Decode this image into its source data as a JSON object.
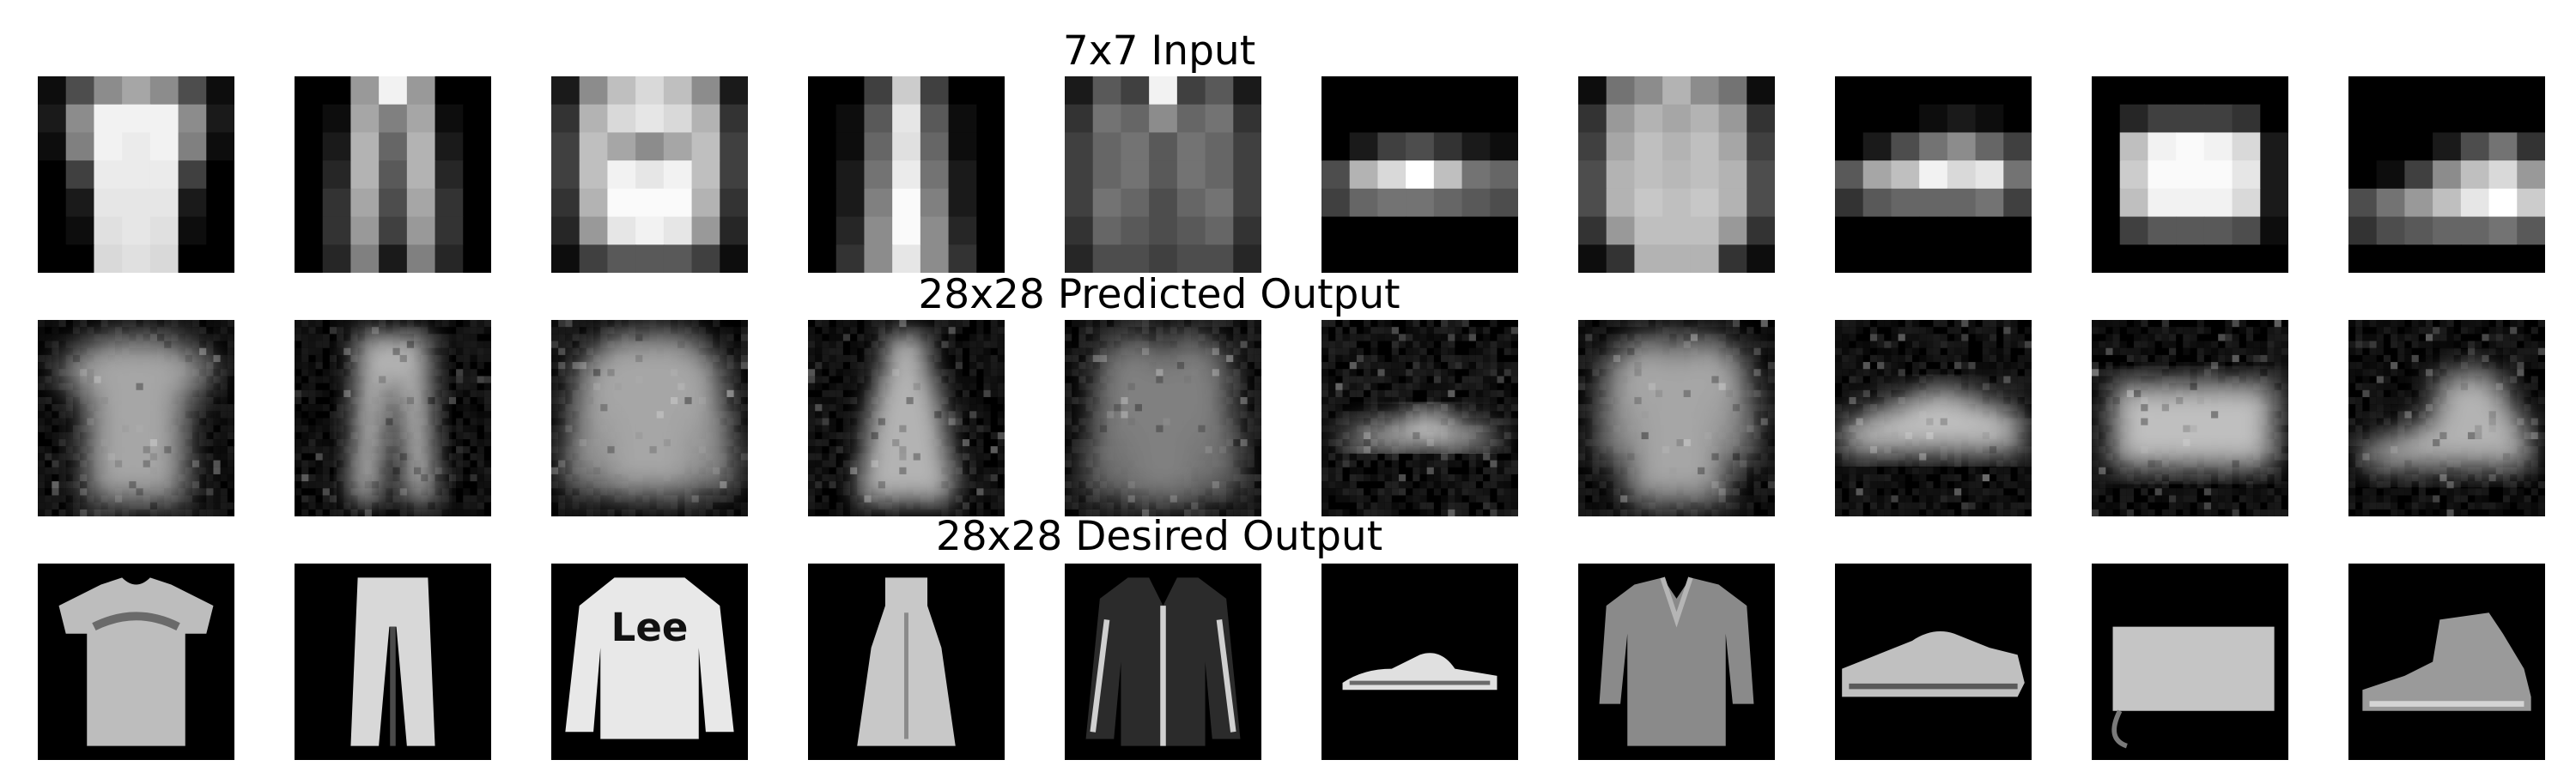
{
  "figure": {
    "rows": [
      {
        "key": "input",
        "title": "7x7 Input",
        "grid": 7,
        "items": [
          {
            "name": "tshirt-7x7",
            "pixels": [
              [
                0.05,
                0.3,
                0.55,
                0.65,
                0.55,
                0.3,
                0.05
              ],
              [
                0.1,
                0.55,
                0.95,
                0.95,
                0.95,
                0.55,
                0.1
              ],
              [
                0.05,
                0.5,
                0.95,
                0.92,
                0.95,
                0.5,
                0.05
              ],
              [
                0.0,
                0.25,
                0.92,
                0.92,
                0.92,
                0.25,
                0.0
              ],
              [
                0.0,
                0.1,
                0.9,
                0.9,
                0.9,
                0.1,
                0.0
              ],
              [
                0.0,
                0.05,
                0.88,
                0.9,
                0.88,
                0.05,
                0.0
              ],
              [
                0.0,
                0.0,
                0.85,
                0.88,
                0.85,
                0.0,
                0.0
              ]
            ]
          },
          {
            "name": "trouser-7x7",
            "pixels": [
              [
                0.0,
                0.0,
                0.6,
                0.95,
                0.6,
                0.0,
                0.0
              ],
              [
                0.0,
                0.05,
                0.65,
                0.5,
                0.65,
                0.05,
                0.0
              ],
              [
                0.0,
                0.1,
                0.7,
                0.4,
                0.7,
                0.1,
                0.0
              ],
              [
                0.0,
                0.15,
                0.7,
                0.35,
                0.7,
                0.15,
                0.0
              ],
              [
                0.0,
                0.2,
                0.65,
                0.3,
                0.65,
                0.2,
                0.0
              ],
              [
                0.0,
                0.2,
                0.6,
                0.25,
                0.6,
                0.2,
                0.0
              ],
              [
                0.0,
                0.15,
                0.5,
                0.1,
                0.5,
                0.15,
                0.0
              ]
            ]
          },
          {
            "name": "pullover-7x7",
            "pixels": [
              [
                0.1,
                0.55,
                0.75,
                0.85,
                0.75,
                0.55,
                0.1
              ],
              [
                0.2,
                0.7,
                0.85,
                0.9,
                0.85,
                0.7,
                0.2
              ],
              [
                0.25,
                0.75,
                0.65,
                0.55,
                0.65,
                0.75,
                0.25
              ],
              [
                0.25,
                0.75,
                0.95,
                0.9,
                0.95,
                0.75,
                0.25
              ],
              [
                0.2,
                0.7,
                0.98,
                0.98,
                0.98,
                0.7,
                0.2
              ],
              [
                0.15,
                0.6,
                0.9,
                0.95,
                0.9,
                0.6,
                0.15
              ],
              [
                0.05,
                0.25,
                0.35,
                0.35,
                0.35,
                0.25,
                0.05
              ]
            ]
          },
          {
            "name": "dress-7x7",
            "pixels": [
              [
                0.0,
                0.0,
                0.25,
                0.8,
                0.25,
                0.0,
                0.0
              ],
              [
                0.0,
                0.05,
                0.35,
                0.9,
                0.35,
                0.05,
                0.0
              ],
              [
                0.0,
                0.05,
                0.4,
                0.88,
                0.4,
                0.05,
                0.0
              ],
              [
                0.0,
                0.1,
                0.45,
                0.92,
                0.45,
                0.1,
                0.0
              ],
              [
                0.0,
                0.1,
                0.5,
                0.98,
                0.5,
                0.1,
                0.0
              ],
              [
                0.0,
                0.15,
                0.55,
                0.98,
                0.55,
                0.15,
                0.0
              ],
              [
                0.0,
                0.2,
                0.55,
                0.9,
                0.55,
                0.2,
                0.0
              ]
            ]
          },
          {
            "name": "coat-7x7",
            "pixels": [
              [
                0.1,
                0.35,
                0.25,
                0.95,
                0.25,
                0.35,
                0.1
              ],
              [
                0.2,
                0.45,
                0.4,
                0.55,
                0.4,
                0.45,
                0.2
              ],
              [
                0.25,
                0.4,
                0.45,
                0.35,
                0.45,
                0.4,
                0.25
              ],
              [
                0.25,
                0.4,
                0.45,
                0.35,
                0.45,
                0.4,
                0.25
              ],
              [
                0.25,
                0.45,
                0.4,
                0.3,
                0.4,
                0.45,
                0.25
              ],
              [
                0.2,
                0.4,
                0.35,
                0.3,
                0.35,
                0.4,
                0.2
              ],
              [
                0.15,
                0.3,
                0.3,
                0.25,
                0.3,
                0.3,
                0.15
              ]
            ]
          },
          {
            "name": "sandal-7x7",
            "pixels": [
              [
                0.0,
                0.0,
                0.0,
                0.0,
                0.0,
                0.0,
                0.0
              ],
              [
                0.0,
                0.0,
                0.0,
                0.0,
                0.0,
                0.0,
                0.0
              ],
              [
                0.0,
                0.1,
                0.25,
                0.3,
                0.2,
                0.1,
                0.05
              ],
              [
                0.3,
                0.7,
                0.85,
                1.0,
                0.75,
                0.45,
                0.4
              ],
              [
                0.25,
                0.4,
                0.45,
                0.45,
                0.4,
                0.35,
                0.3
              ],
              [
                0.0,
                0.0,
                0.0,
                0.0,
                0.0,
                0.0,
                0.0
              ],
              [
                0.0,
                0.0,
                0.0,
                0.0,
                0.0,
                0.0,
                0.0
              ]
            ]
          },
          {
            "name": "shirt-7x7",
            "pixels": [
              [
                0.05,
                0.45,
                0.55,
                0.7,
                0.55,
                0.45,
                0.05
              ],
              [
                0.2,
                0.6,
                0.7,
                0.65,
                0.7,
                0.6,
                0.2
              ],
              [
                0.25,
                0.65,
                0.75,
                0.7,
                0.75,
                0.65,
                0.25
              ],
              [
                0.3,
                0.7,
                0.75,
                0.72,
                0.75,
                0.7,
                0.3
              ],
              [
                0.3,
                0.7,
                0.78,
                0.75,
                0.78,
                0.7,
                0.3
              ],
              [
                0.2,
                0.6,
                0.75,
                0.75,
                0.75,
                0.6,
                0.2
              ],
              [
                0.05,
                0.2,
                0.7,
                0.7,
                0.7,
                0.2,
                0.05
              ]
            ]
          },
          {
            "name": "sneaker-7x7",
            "pixels": [
              [
                0.0,
                0.0,
                0.0,
                0.0,
                0.0,
                0.0,
                0.0
              ],
              [
                0.0,
                0.0,
                0.0,
                0.05,
                0.1,
                0.05,
                0.0
              ],
              [
                0.0,
                0.1,
                0.3,
                0.45,
                0.55,
                0.4,
                0.25
              ],
              [
                0.35,
                0.65,
                0.75,
                0.95,
                0.85,
                0.9,
                0.45
              ],
              [
                0.2,
                0.35,
                0.4,
                0.4,
                0.4,
                0.45,
                0.25
              ],
              [
                0.0,
                0.0,
                0.0,
                0.0,
                0.0,
                0.0,
                0.0
              ],
              [
                0.0,
                0.0,
                0.0,
                0.0,
                0.0,
                0.0,
                0.0
              ]
            ]
          },
          {
            "name": "bag-7x7",
            "pixels": [
              [
                0.0,
                0.0,
                0.0,
                0.0,
                0.0,
                0.0,
                0.0
              ],
              [
                0.0,
                0.15,
                0.25,
                0.25,
                0.25,
                0.2,
                0.0
              ],
              [
                0.0,
                0.75,
                0.95,
                0.98,
                0.95,
                0.85,
                0.1
              ],
              [
                0.0,
                0.8,
                0.98,
                0.98,
                0.98,
                0.9,
                0.1
              ],
              [
                0.0,
                0.75,
                0.95,
                0.95,
                0.95,
                0.85,
                0.1
              ],
              [
                0.0,
                0.25,
                0.35,
                0.35,
                0.35,
                0.3,
                0.05
              ],
              [
                0.0,
                0.0,
                0.0,
                0.0,
                0.0,
                0.0,
                0.0
              ]
            ]
          },
          {
            "name": "ankle-boot-7x7",
            "pixels": [
              [
                0.0,
                0.0,
                0.0,
                0.0,
                0.0,
                0.0,
                0.0
              ],
              [
                0.0,
                0.0,
                0.0,
                0.0,
                0.0,
                0.0,
                0.0
              ],
              [
                0.0,
                0.0,
                0.0,
                0.1,
                0.3,
                0.45,
                0.2
              ],
              [
                0.0,
                0.05,
                0.25,
                0.55,
                0.75,
                0.85,
                0.6
              ],
              [
                0.3,
                0.45,
                0.6,
                0.75,
                0.9,
                1.0,
                0.8
              ],
              [
                0.2,
                0.3,
                0.35,
                0.4,
                0.4,
                0.45,
                0.35
              ],
              [
                0.0,
                0.0,
                0.0,
                0.0,
                0.0,
                0.0,
                0.0
              ]
            ]
          }
        ]
      },
      {
        "key": "predicted",
        "title": "28x28 Predicted Output",
        "grid": 28,
        "items": [
          {
            "name": "tshirt-predicted",
            "shape": "tshirt",
            "brightness": 0.65,
            "blur": 2.2,
            "noise": 0.25
          },
          {
            "name": "trouser-predicted",
            "shape": "trouser",
            "brightness": 0.7,
            "blur": 1.8,
            "noise": 0.25
          },
          {
            "name": "pullover-predicted",
            "shape": "pullover",
            "brightness": 0.65,
            "blur": 2.2,
            "noise": 0.25
          },
          {
            "name": "dress-predicted",
            "shape": "dress",
            "brightness": 0.7,
            "blur": 1.8,
            "noise": 0.25
          },
          {
            "name": "coat-predicted",
            "shape": "coat",
            "brightness": 0.5,
            "blur": 2.2,
            "noise": 0.3
          },
          {
            "name": "sandal-predicted",
            "shape": "sandal",
            "brightness": 0.85,
            "blur": 2.0,
            "noise": 0.3
          },
          {
            "name": "shirt-predicted",
            "shape": "shirt",
            "brightness": 0.65,
            "blur": 2.2,
            "noise": 0.25
          },
          {
            "name": "sneaker-predicted",
            "shape": "sneaker",
            "brightness": 0.75,
            "blur": 2.0,
            "noise": 0.25
          },
          {
            "name": "bag-predicted",
            "shape": "bag",
            "brightness": 0.75,
            "blur": 2.0,
            "noise": 0.25
          },
          {
            "name": "ankle-boot-predicted",
            "shape": "boot",
            "brightness": 0.7,
            "blur": 2.0,
            "noise": 0.25
          }
        ]
      },
      {
        "key": "desired",
        "title": "28x28 Desired Output",
        "grid": 28,
        "items": [
          {
            "name": "tshirt-desired",
            "shape": "tshirt",
            "tone": "#bdbdbd",
            "accent": "#6a6a6a"
          },
          {
            "name": "trouser-desired",
            "shape": "trouser",
            "tone": "#d8d8d8",
            "accent": "#4a4a4a"
          },
          {
            "name": "pullover-desired",
            "shape": "pullover",
            "tone": "#e8e8e8",
            "accent": "#111111",
            "printed_text": "Lee"
          },
          {
            "name": "dress-desired",
            "shape": "dress",
            "tone": "#c8c8c8",
            "accent": "#8a8a8a"
          },
          {
            "name": "coat-desired",
            "shape": "coat",
            "tone": "#2b2b2b",
            "accent": "#d0d0d0"
          },
          {
            "name": "sandal-desired",
            "shape": "sandal",
            "tone": "#e0e0e0",
            "accent": "#6a6a6a"
          },
          {
            "name": "shirt-desired",
            "shape": "shirt",
            "tone": "#8a8a8a",
            "accent": "#b5b5b5"
          },
          {
            "name": "sneaker-desired",
            "shape": "sneaker",
            "tone": "#c0c0c0",
            "accent": "#5a5a5a"
          },
          {
            "name": "bag-desired",
            "shape": "bag",
            "tone": "#c5c5c5",
            "accent": "#7a7a7a"
          },
          {
            "name": "ankle-boot-desired",
            "shape": "boot",
            "tone": "#9a9a9a",
            "accent": "#d5d5d5"
          }
        ]
      }
    ]
  }
}
